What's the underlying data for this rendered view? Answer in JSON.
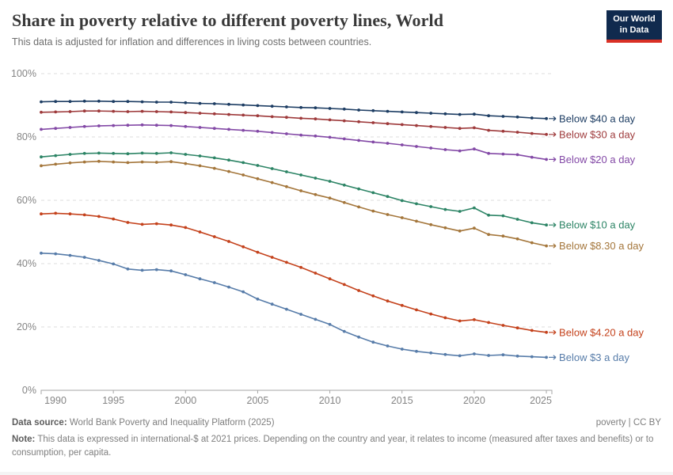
{
  "header": {
    "title": "Share in poverty relative to different poverty lines, World",
    "subtitle": "This data is adjusted for inflation and differences in living costs between countries.",
    "logo_line1": "Our World",
    "logo_line2": "in Data"
  },
  "footer": {
    "datasource_label": "Data source:",
    "datasource_text": " World Bank Poverty and Inequality Platform (2025)",
    "license_text": "poverty | CC BY",
    "note_label": "Note:",
    "note_text": " This data is expressed in international-$ at 2021 prices. Depending on the country and year, it relates to income (measured after taxes and benefits) or to consumption, per capita."
  },
  "chart_data": {
    "type": "line",
    "title": "Share in poverty relative to different poverty lines, World",
    "xlabel": "",
    "ylabel": "",
    "xlim": [
      1989,
      2026
    ],
    "ylim": [
      0,
      100
    ],
    "grid": "horizontal-dashed",
    "legend_position": "right-of-line-end-labels",
    "x": [
      1990,
      1991,
      1992,
      1993,
      1994,
      1995,
      1996,
      1997,
      1998,
      1999,
      2000,
      2001,
      2002,
      2003,
      2004,
      2005,
      2006,
      2007,
      2008,
      2009,
      2010,
      2011,
      2012,
      2013,
      2014,
      2015,
      2016,
      2017,
      2018,
      2019,
      2020,
      2021,
      2022,
      2023,
      2024,
      2025
    ],
    "xticks": [
      1990,
      1995,
      2000,
      2005,
      2010,
      2015,
      2020,
      2025
    ],
    "yticks": [
      0,
      20,
      40,
      60,
      80,
      100
    ],
    "ytick_labels": [
      "0%",
      "20%",
      "40%",
      "60%",
      "80%",
      "100%"
    ],
    "series": [
      {
        "name": "Below $40 a day",
        "color": "#1d3d63",
        "values": [
          91.1,
          91.2,
          91.2,
          91.3,
          91.3,
          91.2,
          91.2,
          91.1,
          91.0,
          91.0,
          90.8,
          90.6,
          90.5,
          90.3,
          90.1,
          89.9,
          89.7,
          89.5,
          89.3,
          89.2,
          89.0,
          88.8,
          88.5,
          88.3,
          88.1,
          87.9,
          87.7,
          87.5,
          87.3,
          87.1,
          87.2,
          86.7,
          86.5,
          86.3,
          86.0,
          85.8
        ]
      },
      {
        "name": "Below $30 a day",
        "color": "#9e3a3b",
        "values": [
          87.8,
          87.9,
          88.0,
          88.2,
          88.2,
          88.1,
          88.0,
          88.1,
          88.0,
          87.9,
          87.7,
          87.5,
          87.3,
          87.1,
          86.9,
          86.7,
          86.4,
          86.2,
          85.9,
          85.7,
          85.4,
          85.1,
          84.8,
          84.5,
          84.2,
          83.9,
          83.6,
          83.3,
          83.0,
          82.7,
          82.9,
          82.1,
          81.8,
          81.5,
          81.1,
          80.8
        ]
      },
      {
        "name": "Below $20 a day",
        "color": "#8349a6",
        "values": [
          82.4,
          82.7,
          83.0,
          83.3,
          83.5,
          83.6,
          83.7,
          83.8,
          83.7,
          83.6,
          83.3,
          83.0,
          82.7,
          82.4,
          82.1,
          81.8,
          81.4,
          81.0,
          80.6,
          80.3,
          79.9,
          79.4,
          78.9,
          78.4,
          78.0,
          77.5,
          77.0,
          76.5,
          76.0,
          75.6,
          76.2,
          74.8,
          74.6,
          74.4,
          73.6,
          72.9
        ]
      },
      {
        "name": "Below $10 a day",
        "color": "#2c8465",
        "values": [
          73.7,
          74.1,
          74.5,
          74.8,
          74.9,
          74.8,
          74.7,
          74.9,
          74.8,
          75.0,
          74.5,
          74.0,
          73.4,
          72.7,
          71.9,
          71.0,
          70.0,
          69.0,
          68.0,
          67.0,
          66.0,
          64.8,
          63.6,
          62.4,
          61.2,
          59.9,
          58.9,
          58.0,
          57.1,
          56.5,
          57.6,
          55.3,
          55.1,
          54.0,
          52.9,
          52.2
        ]
      },
      {
        "name": "Below $8.30 a day",
        "color": "#a4763b",
        "values": [
          70.9,
          71.4,
          71.8,
          72.1,
          72.3,
          72.1,
          71.9,
          72.1,
          72.0,
          72.2,
          71.6,
          70.9,
          70.1,
          69.1,
          68.0,
          66.8,
          65.6,
          64.3,
          63.0,
          61.8,
          60.7,
          59.3,
          57.9,
          56.6,
          55.5,
          54.5,
          53.4,
          52.3,
          51.3,
          50.3,
          51.2,
          49.2,
          48.7,
          47.8,
          46.6,
          45.6
        ]
      },
      {
        "name": "Below $4.20 a day",
        "color": "#c4421c",
        "values": [
          55.7,
          55.9,
          55.7,
          55.4,
          54.9,
          54.1,
          53.0,
          52.4,
          52.6,
          52.2,
          51.4,
          50.0,
          48.5,
          47.0,
          45.3,
          43.6,
          42.0,
          40.4,
          38.8,
          37.0,
          35.2,
          33.4,
          31.5,
          29.8,
          28.2,
          26.8,
          25.4,
          24.1,
          22.9,
          21.9,
          22.3,
          21.4,
          20.5,
          19.7,
          18.9,
          18.3
        ]
      },
      {
        "name": "Below $3 a day",
        "color": "#577ca9",
        "values": [
          43.3,
          43.1,
          42.6,
          42.0,
          41.0,
          39.9,
          38.3,
          37.9,
          38.1,
          37.7,
          36.5,
          35.2,
          34.0,
          32.6,
          31.1,
          28.8,
          27.2,
          25.6,
          24.0,
          22.4,
          20.8,
          18.6,
          16.8,
          15.2,
          14.0,
          13.0,
          12.3,
          11.8,
          11.3,
          10.9,
          11.5,
          11.0,
          11.2,
          10.8,
          10.6,
          10.4
        ]
      }
    ]
  }
}
